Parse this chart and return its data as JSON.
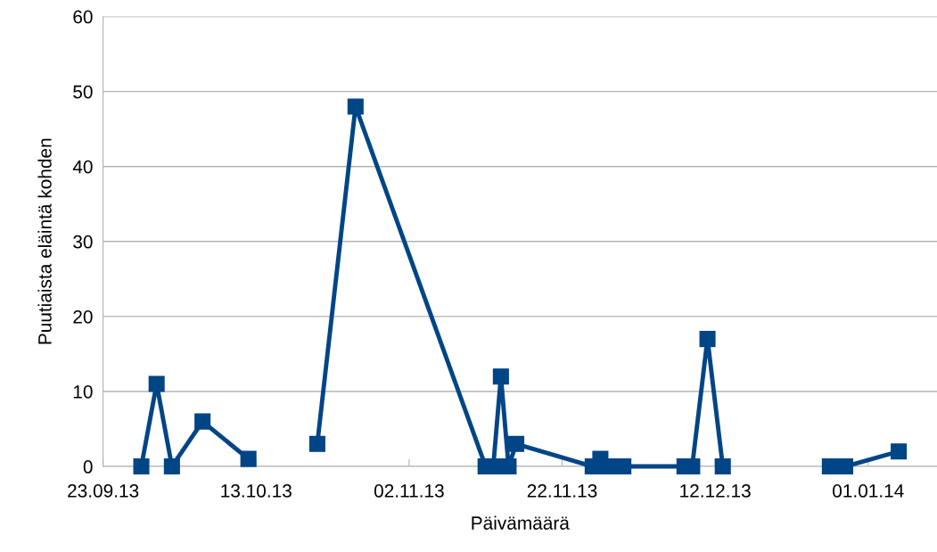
{
  "chart_data": {
    "type": "line",
    "xlabel": "Päivämäärä",
    "ylabel": "Puutiaista eläintä kohden",
    "x": [
      "2013-09-28",
      "2013-09-30",
      "2013-10-02",
      "2013-10-06",
      "2013-10-12",
      "2013-10-16",
      "2013-10-21",
      "2013-10-26",
      "2013-11-12",
      "2013-11-13",
      "2013-11-14",
      "2013-11-15",
      "2013-11-16",
      "2013-11-26",
      "2013-11-27",
      "2013-11-28",
      "2013-11-30",
      "2013-12-08",
      "2013-12-09",
      "2013-12-11",
      "2013-12-13",
      "2013-12-20",
      "2013-12-27",
      "2013-12-29",
      "2014-01-05"
    ],
    "series": [
      {
        "color": "#004586",
        "values": [
          0,
          11,
          0,
          6,
          1,
          null,
          3,
          48,
          0,
          0,
          12,
          0,
          3,
          0,
          1,
          0,
          0,
          0,
          0,
          17,
          0,
          null,
          0,
          0,
          2
        ]
      }
    ],
    "xlim": [
      "2013-09-23",
      "2014-01-10"
    ],
    "xticks": [
      {
        "value": "2013-09-23",
        "label": "23.09.13"
      },
      {
        "value": "2013-10-13",
        "label": "13.10.13"
      },
      {
        "value": "2013-11-02",
        "label": "02.11.13"
      },
      {
        "value": "2013-11-22",
        "label": "22.11.13"
      },
      {
        "value": "2013-12-12",
        "label": "12.12.13"
      },
      {
        "value": "2014-01-01",
        "label": "01.01.14"
      }
    ],
    "ylim": [
      0,
      60
    ],
    "yticks": [
      0,
      10,
      20,
      30,
      40,
      50,
      60
    ],
    "grid": "y",
    "marker": "square",
    "line_style": "solid",
    "legend": false
  }
}
